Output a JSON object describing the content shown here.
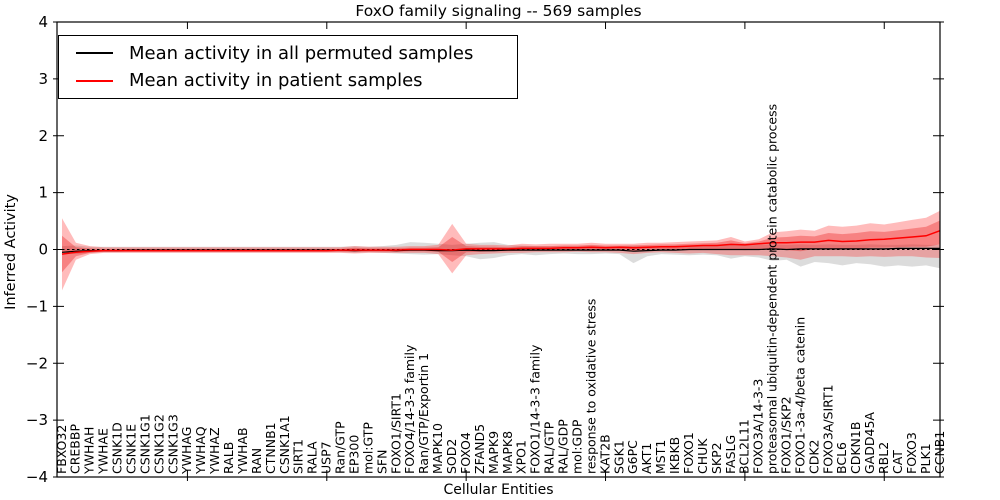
{
  "title": "FoxO family signaling -- 569 samples",
  "legend": {
    "items": [
      {
        "label": "Mean activity in all permuted samples",
        "color": "#000000"
      },
      {
        "label": "Mean activity in patient samples",
        "color": "#ff0000"
      }
    ]
  },
  "colors": {
    "patient_line": "#ff0000",
    "permuted_line": "#000000",
    "patient_band_outer": "rgba(255,30,30,0.30)",
    "patient_band_inner": "rgba(230,0,0,0.30)",
    "permuted_band": "rgba(125,125,125,0.27)",
    "frame": "#000000"
  },
  "chart_data": {
    "type": "line",
    "title": "FoxO family signaling -- 569 samples",
    "xlabel": "Cellular Entities",
    "ylabel": "Inferred Activity",
    "ylim": [
      -4,
      4
    ],
    "grid": false,
    "legend_position": "upper left",
    "zero_line": {
      "style": "dashed",
      "color": "#000000"
    },
    "yticks": [
      {
        "v": 4,
        "label": "4"
      },
      {
        "v": 3,
        "label": "3"
      },
      {
        "v": 2,
        "label": "2"
      },
      {
        "v": 1,
        "label": "1"
      },
      {
        "v": 0,
        "label": "0"
      },
      {
        "v": -1,
        "label": "−1"
      },
      {
        "v": -2,
        "label": "−2"
      },
      {
        "v": -3,
        "label": "−3"
      },
      {
        "v": -4,
        "label": "−4"
      }
    ],
    "xtick_indices": [
      9,
      19,
      29,
      39,
      49,
      59
    ],
    "categories": [
      "FBXO32",
      "CREBBP",
      "YWHAH",
      "YWHAE",
      "CSNK1D",
      "CSNK1E",
      "CSNK1G1",
      "CSNK1G2",
      "CSNK1G3",
      "YWHAG",
      "YWHAQ",
      "YWHAZ",
      "RALB",
      "YWHAB",
      "RAN",
      "CTNNB1",
      "CSNK1A1",
      "SIRT1",
      "RALA",
      "USP7",
      "Ran/GTP",
      "EP300",
      "mol:GTP",
      "SFN",
      "FOXO1/SIRT1",
      "FOXO4/14-3-3 family",
      "Ran/GTP/Exportin 1",
      "MAPK10",
      "SOD2",
      "FOXO4",
      "ZFAND5",
      "MAPK9",
      "MAPK8",
      "XPO1",
      "FOXO1/14-3-3 family",
      "RAL/GTP",
      "RAL/GDP",
      "mol:GDP",
      "response to oxidative stress",
      "KAT2B",
      "SGK1",
      "G6PC",
      "AKT1",
      "MST1",
      "IKBKB",
      "FOXO1",
      "CHUK",
      "SKP2",
      "FASLG",
      "BCL2L11",
      "FOXO3A/14-3-3",
      "proteasomal ubiquitin-dependent protein catabolic process",
      "FOXO1/SKP2",
      "FOXO1-3a-4/beta catenin",
      "CDK2",
      "FOXO3A/SIRT1",
      "BCL6",
      "CDKN1B",
      "GADD45A",
      "RBL2",
      "CAT",
      "FOXO3",
      "PLK1",
      "CCNB1"
    ],
    "series": [
      {
        "name": "Mean activity in all permuted samples",
        "color": "#000000",
        "width": 1.2,
        "values": [
          -0.05,
          -0.03,
          -0.02,
          -0.02,
          -0.02,
          -0.01,
          -0.01,
          -0.01,
          -0.01,
          -0.01,
          -0.01,
          -0.01,
          -0.01,
          -0.01,
          -0.01,
          -0.01,
          -0.01,
          -0.01,
          -0.01,
          -0.01,
          -0.01,
          -0.02,
          -0.01,
          -0.01,
          -0.02,
          -0.01,
          -0.01,
          -0.02,
          -0.02,
          -0.01,
          -0.02,
          -0.02,
          -0.01,
          -0.01,
          -0.01,
          -0.01,
          -0.01,
          -0.01,
          -0.01,
          -0.01,
          -0.01,
          -0.03,
          -0.02,
          -0.01,
          -0.01,
          0,
          0,
          0,
          0,
          0,
          0,
          0.01,
          0,
          0.01,
          0.01,
          0.01,
          0.01,
          0.01,
          0.01,
          0.01,
          0.02,
          0.02,
          0.02,
          0.02
        ],
        "bands": [
          {
            "name": "permuted-band",
            "fill": "rgba(125,125,125,0.27)",
            "lo": [
              -0.06,
              -0.08,
              -0.06,
              -0.05,
              -0.05,
              -0.05,
              -0.05,
              -0.05,
              -0.05,
              -0.05,
              -0.05,
              -0.05,
              -0.05,
              -0.05,
              -0.05,
              -0.05,
              -0.05,
              -0.05,
              -0.05,
              -0.05,
              -0.05,
              -0.06,
              -0.05,
              -0.06,
              -0.07,
              -0.08,
              -0.09,
              -0.08,
              -0.1,
              -0.12,
              -0.17,
              -0.15,
              -0.1,
              -0.08,
              -0.1,
              -0.08,
              -0.07,
              -0.08,
              -0.08,
              -0.07,
              -0.08,
              -0.24,
              -0.12,
              -0.08,
              -0.09,
              -0.1,
              -0.09,
              -0.1,
              -0.16,
              -0.12,
              -0.14,
              -0.2,
              -0.18,
              -0.3,
              -0.22,
              -0.24,
              -0.28,
              -0.24,
              -0.26,
              -0.3,
              -0.28,
              -0.3,
              -0.28,
              -0.33
            ],
            "hi": [
              0.06,
              0.07,
              0.05,
              0.05,
              0.05,
              0.05,
              0.05,
              0.05,
              0.05,
              0.05,
              0.05,
              0.05,
              0.05,
              0.05,
              0.05,
              0.05,
              0.05,
              0.05,
              0.05,
              0.05,
              0.05,
              0.06,
              0.05,
              0.06,
              0.08,
              0.13,
              0.12,
              0.1,
              0.08,
              0.1,
              0.12,
              0.13,
              0.08,
              0.07,
              0.06,
              0.06,
              0.06,
              0.06,
              0.07,
              0.06,
              0.06,
              0.07,
              0.06,
              0.06,
              0.07,
              0.07,
              0.07,
              0.08,
              0.08,
              0.07,
              0.08,
              0.09,
              0.08,
              0.09,
              0.08,
              0.09,
              0.08,
              0.08,
              0.09,
              0.08,
              0.08,
              0.09,
              0.08,
              0.08
            ]
          }
        ]
      },
      {
        "name": "Mean activity in patient samples",
        "color": "#ff0000",
        "width": 1.5,
        "values": [
          -0.08,
          -0.05,
          -0.03,
          -0.02,
          -0.02,
          -0.02,
          -0.02,
          -0.02,
          -0.02,
          -0.02,
          -0.02,
          -0.02,
          -0.02,
          -0.02,
          -0.02,
          -0.02,
          -0.02,
          -0.02,
          -0.02,
          -0.02,
          -0.01,
          -0.01,
          -0.01,
          -0.01,
          -0.01,
          0,
          0,
          0,
          -0.01,
          0.01,
          0.01,
          0.01,
          0.01,
          0.02,
          0.02,
          0.02,
          0.03,
          0.03,
          0.04,
          0.03,
          0.04,
          0.03,
          0.04,
          0.05,
          0.05,
          0.06,
          0.07,
          0.07,
          0.09,
          0.08,
          0.1,
          0.12,
          0.12,
          0.13,
          0.13,
          0.16,
          0.14,
          0.15,
          0.17,
          0.18,
          0.2,
          0.22,
          0.24,
          0.33
        ],
        "bands": [
          {
            "name": "patient-band-outer",
            "fill": "rgba(255,30,30,0.30)",
            "lo": [
              -0.72,
              -0.18,
              -0.08,
              -0.06,
              -0.06,
              -0.06,
              -0.06,
              -0.06,
              -0.06,
              -0.06,
              -0.06,
              -0.06,
              -0.06,
              -0.06,
              -0.06,
              -0.06,
              -0.06,
              -0.06,
              -0.06,
              -0.06,
              -0.06,
              -0.07,
              -0.06,
              -0.06,
              -0.06,
              -0.06,
              -0.06,
              -0.08,
              -0.42,
              -0.1,
              -0.08,
              -0.07,
              -0.06,
              -0.06,
              -0.05,
              -0.05,
              -0.05,
              -0.04,
              -0.05,
              -0.05,
              -0.06,
              -0.08,
              -0.06,
              -0.05,
              -0.06,
              -0.07,
              -0.06,
              -0.08,
              -0.1,
              -0.1,
              -0.1,
              -0.12,
              -0.14,
              -0.18,
              -0.12,
              -0.12,
              -0.12,
              -0.13,
              -0.12,
              -0.13,
              -0.12,
              -0.12,
              -0.14,
              -0.15
            ],
            "hi": [
              0.55,
              0.12,
              0.06,
              0.04,
              0.04,
              0.04,
              0.04,
              0.04,
              0.04,
              0.04,
              0.04,
              0.04,
              0.04,
              0.04,
              0.04,
              0.04,
              0.04,
              0.04,
              0.04,
              0.04,
              0.04,
              0.06,
              0.05,
              0.05,
              0.05,
              0.06,
              0.06,
              0.08,
              0.45,
              0.1,
              0.08,
              0.08,
              0.07,
              0.1,
              0.09,
              0.1,
              0.1,
              0.1,
              0.12,
              0.1,
              0.1,
              0.1,
              0.12,
              0.12,
              0.13,
              0.14,
              0.15,
              0.16,
              0.22,
              0.14,
              0.18,
              0.3,
              0.32,
              0.35,
              0.33,
              0.42,
              0.4,
              0.42,
              0.46,
              0.44,
              0.48,
              0.52,
              0.56,
              0.68
            ]
          },
          {
            "name": "patient-band-inner",
            "fill": "rgba(230,0,0,0.30)",
            "lo": [
              -0.4,
              -0.12,
              -0.06,
              -0.04,
              -0.04,
              -0.04,
              -0.04,
              -0.04,
              -0.04,
              -0.04,
              -0.04,
              -0.04,
              -0.04,
              -0.04,
              -0.04,
              -0.04,
              -0.04,
              -0.04,
              -0.04,
              -0.04,
              -0.04,
              -0.04,
              -0.04,
              -0.04,
              -0.04,
              -0.03,
              -0.03,
              -0.04,
              -0.22,
              -0.05,
              -0.04,
              -0.03,
              -0.03,
              -0.02,
              -0.02,
              -0.02,
              -0.01,
              -0.01,
              -0.01,
              -0.01,
              -0.01,
              -0.03,
              -0.01,
              0,
              -0.01,
              -0.01,
              0.01,
              0,
              0,
              -0.01,
              0,
              0,
              -0.01,
              -0.03,
              0.01,
              0.02,
              0.01,
              0.01,
              0.03,
              0.03,
              0.04,
              0.05,
              0.05,
              0.09
            ],
            "hi": [
              0.24,
              0.04,
              0.02,
              0.01,
              0.01,
              0.01,
              0.01,
              0.01,
              0.01,
              0.01,
              0.01,
              0.01,
              0.01,
              0.01,
              0.01,
              0.01,
              0.01,
              0.01,
              0.01,
              0.01,
              0.01,
              0.03,
              0.02,
              0.02,
              0.02,
              0.03,
              0.03,
              0.04,
              0.22,
              0.06,
              0.05,
              0.05,
              0.04,
              0.06,
              0.06,
              0.06,
              0.07,
              0.07,
              0.08,
              0.07,
              0.07,
              0.07,
              0.08,
              0.09,
              0.09,
              0.1,
              0.11,
              0.12,
              0.16,
              0.11,
              0.14,
              0.21,
              0.22,
              0.24,
              0.23,
              0.29,
              0.27,
              0.29,
              0.32,
              0.31,
              0.34,
              0.37,
              0.4,
              0.51
            ]
          }
        ]
      }
    ]
  }
}
